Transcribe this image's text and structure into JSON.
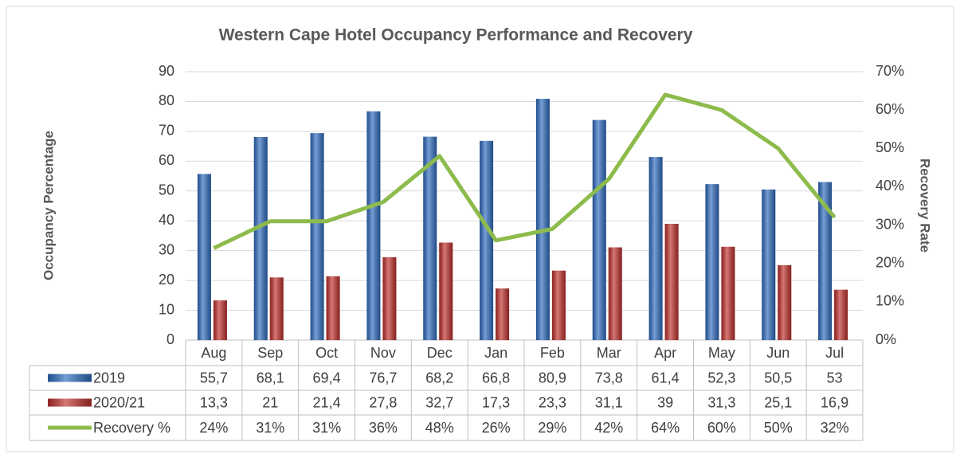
{
  "chart_data": {
    "type": "bar",
    "title": "Western Cape Hotel Occupancy Performance and Recovery",
    "y_label": "Occupancy Percentage",
    "y2_label": "Recovery Rate",
    "categories": [
      "Aug",
      "Sep",
      "Oct",
      "Nov",
      "Dec",
      "Jan",
      "Feb",
      "Mar",
      "Apr",
      "May",
      "Jun",
      "Jul"
    ],
    "series": [
      {
        "name": "2019",
        "color": "#2f6cc0",
        "values": [
          55.7,
          68.1,
          69.4,
          76.7,
          68.2,
          66.8,
          80.9,
          73.8,
          61.4,
          52.3,
          50.5,
          53
        ],
        "value_labels": [
          "55,7",
          "68,1",
          "69,4",
          "76,7",
          "68,2",
          "66,8",
          "80,9",
          "73,8",
          "61,4",
          "52,3",
          "50,5",
          "53"
        ]
      },
      {
        "name": "2020/21",
        "color": "#c0302c",
        "values": [
          13.3,
          21,
          21.4,
          27.8,
          32.7,
          17.3,
          23.3,
          31.1,
          39,
          31.3,
          25.1,
          16.9
        ],
        "value_labels": [
          "13,3",
          "21",
          "21,4",
          "27,8",
          "32,7",
          "17,3",
          "23,3",
          "31,1",
          "39",
          "31,3",
          "25,1",
          "16,9"
        ]
      },
      {
        "name": "Recovery %",
        "color": "#8dbb4c",
        "type": "line",
        "axis": "y2",
        "values": [
          24,
          31,
          31,
          36,
          48,
          26,
          29,
          42,
          64,
          60,
          50,
          32
        ],
        "value_labels": [
          "24%",
          "31%",
          "31%",
          "36%",
          "48%",
          "26%",
          "29%",
          "42%",
          "64%",
          "60%",
          "50%",
          "32%"
        ]
      }
    ],
    "ylim": [
      0,
      90
    ],
    "yticks": [
      0,
      10,
      20,
      30,
      40,
      50,
      60,
      70,
      80,
      90
    ],
    "y2lim": [
      0,
      70
    ],
    "y2ticks": [
      {
        "value": 0,
        "label": "0%"
      },
      {
        "value": 10,
        "label": "10%"
      },
      {
        "value": 20,
        "label": "20%"
      },
      {
        "value": 30,
        "label": "30%"
      },
      {
        "value": 40,
        "label": "40%"
      },
      {
        "value": 50,
        "label": "50%"
      },
      {
        "value": 60,
        "label": "60%"
      },
      {
        "value": 70,
        "label": "70%"
      }
    ],
    "grid": true
  }
}
